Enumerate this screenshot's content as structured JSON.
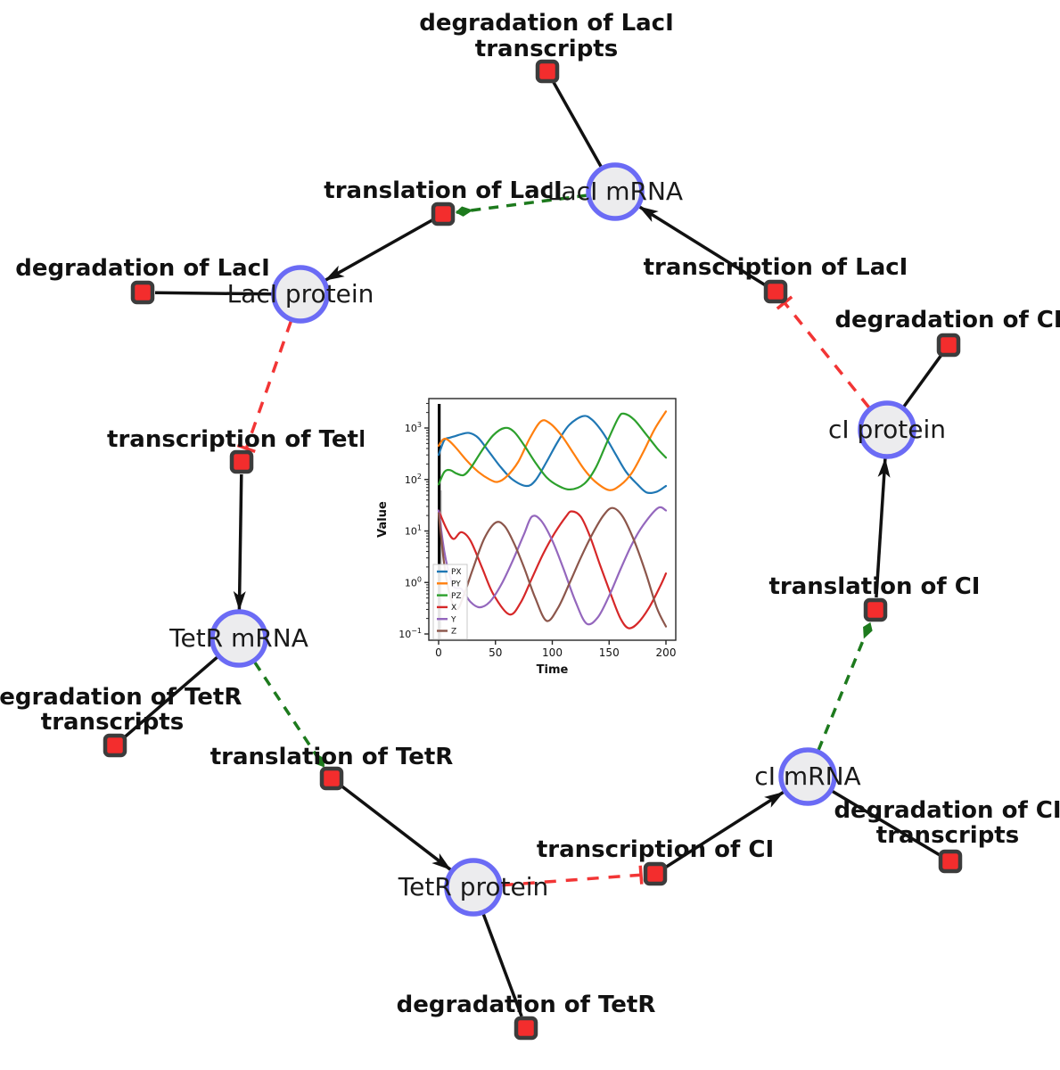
{
  "colors": {
    "edge": "#111111",
    "activation": "#1d7a1d",
    "repression": "#f23535",
    "species_fill": "#ececee",
    "species_border": "#6b6bf5",
    "reaction_fill": "#f32d2d",
    "reaction_border": "#3c3c3c"
  },
  "diagram": {
    "species": [
      {
        "id": "laci-mrna",
        "label": "LacI mRNA"
      },
      {
        "id": "laci-protein",
        "label": "LacI protein"
      },
      {
        "id": "tetr-mrna",
        "label": "TetR mRNA"
      },
      {
        "id": "tetr-protein",
        "label": "TetR protein"
      },
      {
        "id": "ci-mrna",
        "label": "cI mRNA"
      },
      {
        "id": "ci-protein",
        "label": "cI protein"
      }
    ],
    "reactions": [
      {
        "id": "degradation-laci-transcripts",
        "lines": [
          "degradation of LacI",
          "transcripts"
        ]
      },
      {
        "id": "translation-laci",
        "lines": [
          "translation of LacI"
        ]
      },
      {
        "id": "degradation-laci",
        "lines": [
          "degradation of LacI"
        ]
      },
      {
        "id": "transcription-laci",
        "lines": [
          "transcription of LacI"
        ]
      },
      {
        "id": "degradation-ci",
        "lines": [
          "degradation of CI"
        ]
      },
      {
        "id": "transcription-tetr",
        "lines": [
          "transcription of TetR"
        ]
      },
      {
        "id": "translation-ci",
        "lines": [
          "translation of CI"
        ]
      },
      {
        "id": "degradation-tetr-transcripts",
        "lines": [
          "degradation of TetR",
          "transcripts"
        ]
      },
      {
        "id": "translation-tetr",
        "lines": [
          "translation of TetR"
        ]
      },
      {
        "id": "transcription-ci",
        "lines": [
          "transcription of CI"
        ]
      },
      {
        "id": "degradation-ci-transcripts",
        "lines": [
          "degradation of CI",
          "transcripts"
        ]
      },
      {
        "id": "degradation-tetr",
        "lines": [
          "degradation of TetR"
        ]
      }
    ]
  },
  "chart_data": {
    "type": "line",
    "title": "",
    "xlabel": "Time",
    "ylabel": "Value",
    "yscale": "log",
    "grid": false,
    "legend_position": "lower left",
    "x_ticks": [
      0,
      50,
      100,
      150,
      200
    ],
    "y_tick_exponents": [
      3,
      2,
      1,
      0,
      -1
    ],
    "xlim": [
      -9,
      210
    ],
    "ylim_log": [
      -1.12,
      3.57
    ],
    "annotations": [
      {
        "type": "vline",
        "x": 0.5
      }
    ],
    "series": [
      {
        "name": "PX",
        "color": "#1f77b4",
        "points": [
          [
            0,
            300
          ],
          [
            5,
            580
          ],
          [
            10,
            650
          ],
          [
            15,
            700
          ],
          [
            20,
            760
          ],
          [
            27,
            800
          ],
          [
            35,
            640
          ],
          [
            45,
            330
          ],
          [
            55,
            170
          ],
          [
            65,
            100
          ],
          [
            77,
            75
          ],
          [
            85,
            95
          ],
          [
            95,
            220
          ],
          [
            105,
            550
          ],
          [
            115,
            1150
          ],
          [
            127,
            1700
          ],
          [
            135,
            1450
          ],
          [
            145,
            780
          ],
          [
            155,
            330
          ],
          [
            165,
            140
          ],
          [
            175,
            80
          ],
          [
            183,
            56
          ],
          [
            192,
            58
          ],
          [
            200,
            75
          ]
        ]
      },
      {
        "name": "PY",
        "color": "#ff7f0e",
        "points": [
          [
            0,
            450
          ],
          [
            4,
            600
          ],
          [
            8,
            590
          ],
          [
            15,
            420
          ],
          [
            25,
            230
          ],
          [
            35,
            140
          ],
          [
            45,
            100
          ],
          [
            52,
            90
          ],
          [
            60,
            115
          ],
          [
            70,
            220
          ],
          [
            80,
            620
          ],
          [
            90,
            1350
          ],
          [
            98,
            1230
          ],
          [
            108,
            720
          ],
          [
            118,
            340
          ],
          [
            128,
            158
          ],
          [
            138,
            90
          ],
          [
            150,
            62
          ],
          [
            160,
            78
          ],
          [
            170,
            135
          ],
          [
            180,
            340
          ],
          [
            190,
            950
          ],
          [
            200,
            2100
          ]
        ]
      },
      {
        "name": "PZ",
        "color": "#2ca02c",
        "points": [
          [
            0,
            80
          ],
          [
            5,
            140
          ],
          [
            10,
            152
          ],
          [
            16,
            130
          ],
          [
            22,
            122
          ],
          [
            28,
            165
          ],
          [
            38,
            360
          ],
          [
            48,
            720
          ],
          [
            58,
            1000
          ],
          [
            66,
            860
          ],
          [
            75,
            470
          ],
          [
            85,
            215
          ],
          [
            95,
            110
          ],
          [
            105,
            76
          ],
          [
            116,
            64
          ],
          [
            128,
            82
          ],
          [
            138,
            165
          ],
          [
            148,
            520
          ],
          [
            158,
            1550
          ],
          [
            163,
            1900
          ],
          [
            172,
            1450
          ],
          [
            182,
            780
          ],
          [
            192,
            410
          ],
          [
            200,
            265
          ]
        ]
      },
      {
        "name": "X",
        "color": "#d62728",
        "points": [
          [
            0,
            25
          ],
          [
            7,
            11
          ],
          [
            13,
            7
          ],
          [
            20,
            9.5
          ],
          [
            28,
            6.5
          ],
          [
            38,
            2
          ],
          [
            48,
            0.6
          ],
          [
            62,
            0.24
          ],
          [
            72,
            0.4
          ],
          [
            82,
            1.2
          ],
          [
            92,
            3.6
          ],
          [
            102,
            9
          ],
          [
            112,
            19
          ],
          [
            117,
            24
          ],
          [
            125,
            19
          ],
          [
            133,
            8
          ],
          [
            142,
            2.2
          ],
          [
            152,
            0.55
          ],
          [
            160,
            0.2
          ],
          [
            167,
            0.13
          ],
          [
            175,
            0.16
          ],
          [
            185,
            0.32
          ],
          [
            195,
            0.85
          ],
          [
            200,
            1.5
          ]
        ]
      },
      {
        "name": "Y",
        "color": "#9467bd",
        "points": [
          [
            0,
            25
          ],
          [
            5,
            4
          ],
          [
            10,
            1.3
          ],
          [
            14,
            0.8
          ],
          [
            20,
            0.75
          ],
          [
            28,
            0.42
          ],
          [
            36,
            0.33
          ],
          [
            45,
            0.42
          ],
          [
            55,
            0.9
          ],
          [
            65,
            2.6
          ],
          [
            75,
            8.5
          ],
          [
            82,
            19
          ],
          [
            90,
            16
          ],
          [
            100,
            6.5
          ],
          [
            110,
            1.8
          ],
          [
            120,
            0.45
          ],
          [
            130,
            0.16
          ],
          [
            140,
            0.21
          ],
          [
            150,
            0.55
          ],
          [
            160,
            1.8
          ],
          [
            170,
            5.5
          ],
          [
            180,
            13
          ],
          [
            193,
            28
          ],
          [
            200,
            25
          ]
        ]
      },
      {
        "name": "Z",
        "color": "#8c564b",
        "points": [
          [
            0,
            22
          ],
          [
            5,
            2.2
          ],
          [
            10,
            0.55
          ],
          [
            16,
            0.3
          ],
          [
            22,
            0.55
          ],
          [
            30,
            1.8
          ],
          [
            40,
            7
          ],
          [
            50,
            14.5
          ],
          [
            58,
            12.5
          ],
          [
            66,
            6
          ],
          [
            75,
            2
          ],
          [
            85,
            0.5
          ],
          [
            95,
            0.18
          ],
          [
            105,
            0.32
          ],
          [
            115,
            0.95
          ],
          [
            125,
            3
          ],
          [
            135,
            8.5
          ],
          [
            145,
            20
          ],
          [
            153,
            28
          ],
          [
            162,
            19
          ],
          [
            172,
            6.5
          ],
          [
            182,
            1.6
          ],
          [
            192,
            0.32
          ],
          [
            200,
            0.14
          ]
        ]
      }
    ]
  }
}
